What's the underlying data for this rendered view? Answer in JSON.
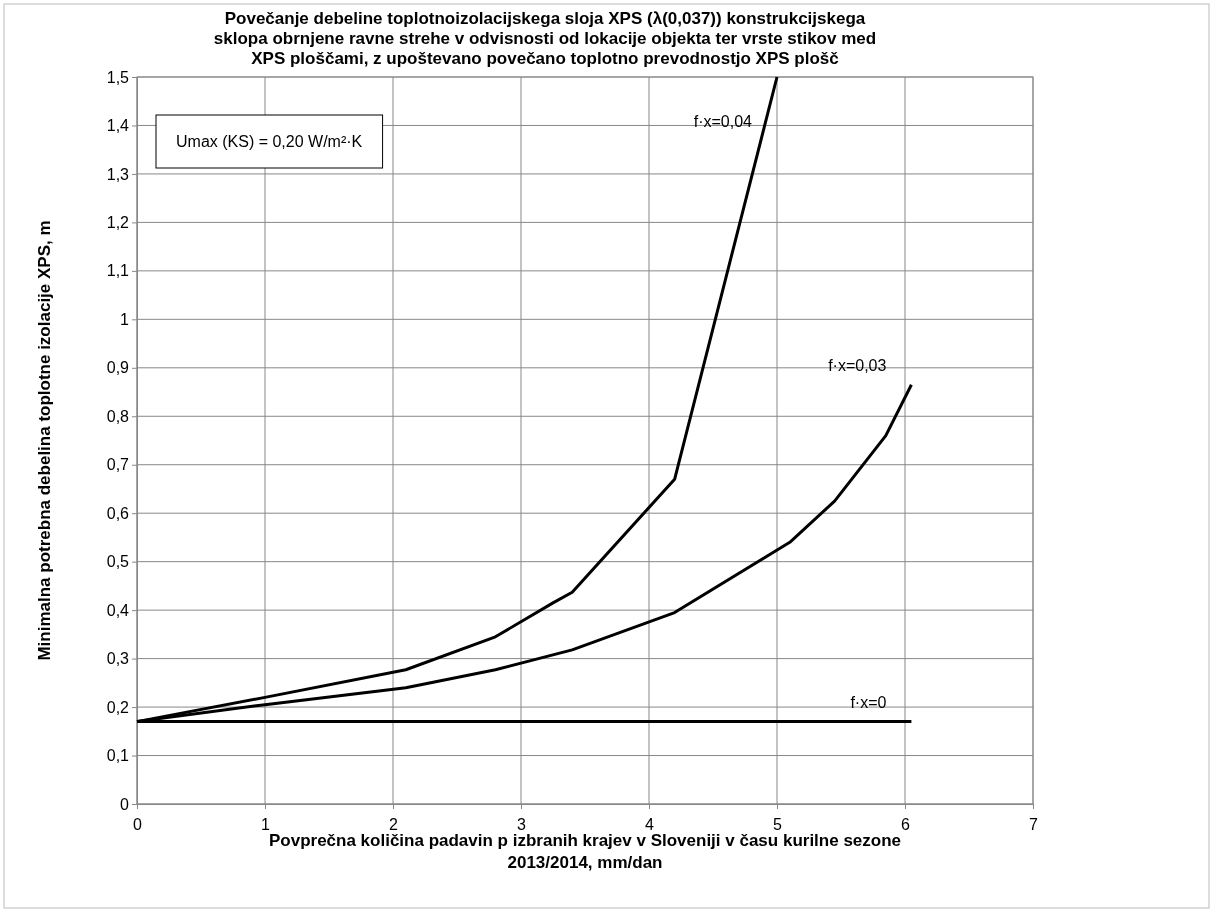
{
  "chart_data": {
    "type": "line",
    "title": "Povečanje debeline toplotnoizolacijskega sloja XPS (λ(0,037)) konstrukcijskega\nsklopa obrnjene ravne strehe v odvisnosti od lokacije objekta ter vrste stikov med\nXPS ploščami, z upoštevano povečano toplotno prevodnostjo XPS plošč",
    "xlabel": "Povprečna količina padavin p izbranih krajev v Sloveniji v času kurilne sezone\n2013/2014, mm/dan",
    "ylabel": "Minimalna potrebna debelina toplotne izolacije XPS, m",
    "annotations": [
      "Umax (KS) = 0,20 W/m²·K"
    ],
    "xlim": [
      0,
      7
    ],
    "xticks": [
      0,
      1,
      2,
      3,
      4,
      5,
      6,
      7
    ],
    "ylim": [
      0,
      1.5
    ],
    "yticks": [
      0,
      {
        "value": 0.1,
        "label": "0,1"
      },
      {
        "value": 0.2,
        "label": "0,2"
      },
      {
        "value": 0.3,
        "label": "0,3"
      },
      {
        "value": 0.4,
        "label": "0,4"
      },
      {
        "value": 0.5,
        "label": "0,5"
      },
      {
        "value": 0.6,
        "label": "0,6"
      },
      {
        "value": 0.7,
        "label": "0,7"
      },
      {
        "value": 0.8,
        "label": "0,8"
      },
      {
        "value": 0.9,
        "label": "0,9"
      },
      1,
      {
        "value": 1.1,
        "label": "1,1"
      },
      {
        "value": 1.2,
        "label": "1,2"
      },
      {
        "value": 1.3,
        "label": "1,3"
      },
      {
        "value": 1.4,
        "label": "1,4"
      },
      {
        "value": 1.5,
        "label": "1,5"
      }
    ],
    "grid": true,
    "marker": "none",
    "line_style": "solid",
    "series": [
      {
        "name": "f·x=0,04",
        "color": "#000000",
        "x": [
          0,
          1,
          2.1,
          2.8,
          3.25,
          3.4,
          4.2,
          5.0
        ],
        "values": [
          0.17,
          0.22,
          0.277,
          0.345,
          0.415,
          0.437,
          0.67,
          1.5
        ]
      },
      {
        "name": "f·x=0,03",
        "color": "#000000",
        "x": [
          0,
          1,
          2.1,
          2.8,
          3.4,
          4.2,
          5.1,
          5.45,
          5.85,
          6.05
        ],
        "values": [
          0.17,
          0.205,
          0.24,
          0.277,
          0.318,
          0.395,
          0.54,
          0.625,
          0.76,
          0.865
        ]
      },
      {
        "name": "f·x=0",
        "color": "#000000",
        "x": [
          0,
          6.05
        ],
        "values": [
          0.17,
          0.17
        ]
      }
    ]
  }
}
